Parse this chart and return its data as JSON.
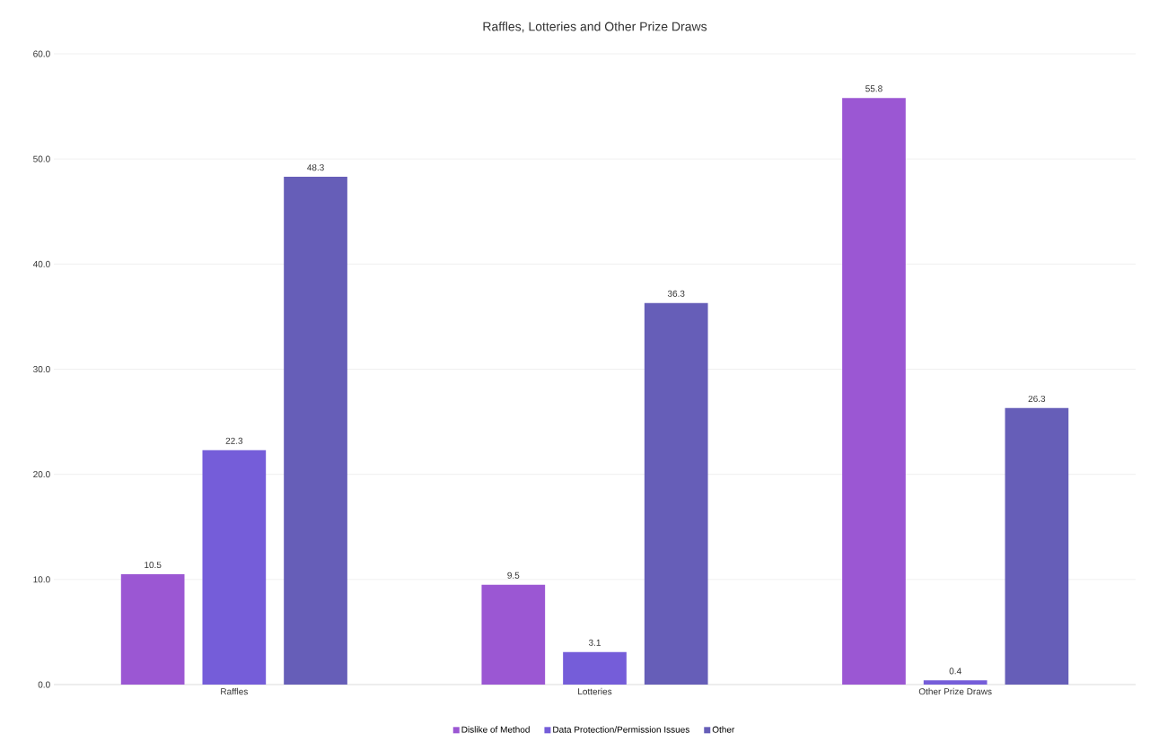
{
  "chart_data": {
    "type": "bar",
    "title": "Raffles, Lotteries and Other Prize Draws",
    "categories": [
      "Raffles",
      "Lotteries",
      "Other Prize Draws"
    ],
    "series": [
      {
        "name": "Dislike of Method",
        "color": "#9b57d3",
        "values": [
          10.5,
          9.5,
          55.8
        ]
      },
      {
        "name": "Data Protection/Permission Issues",
        "color": "#755dd9",
        "values": [
          22.3,
          3.1,
          0.4
        ]
      },
      {
        "name": "Other",
        "color": "#665eb8",
        "values": [
          48.3,
          36.3,
          26.3
        ]
      }
    ],
    "ylim": [
      0,
      60
    ],
    "yticks": [
      {
        "value": 0,
        "label": "0.0"
      },
      {
        "value": 10,
        "label": "10.0"
      },
      {
        "value": 20,
        "label": "20.0"
      },
      {
        "value": 30,
        "label": "30.0"
      },
      {
        "value": 40,
        "label": "40.0"
      },
      {
        "value": 50,
        "label": "50.0"
      },
      {
        "value": 60,
        "label": "60.0"
      }
    ],
    "grid": "y",
    "legend": "bottom",
    "data_labels": true
  }
}
